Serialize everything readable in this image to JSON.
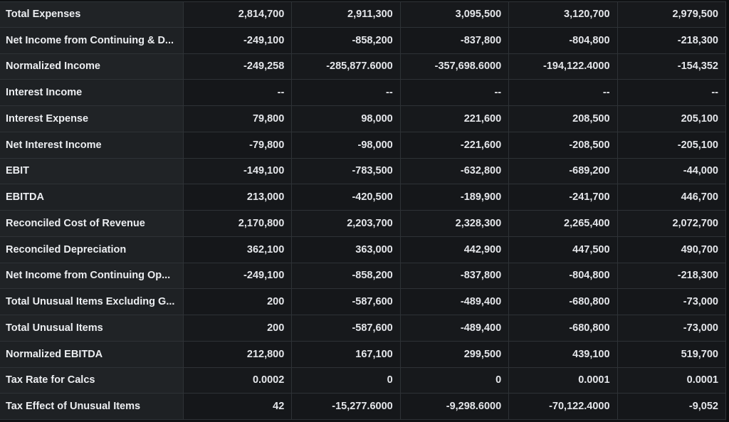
{
  "table": {
    "rows": [
      {
        "label": "Total Expenses",
        "values": [
          "2,814,700",
          "2,911,300",
          "3,095,500",
          "3,120,700",
          "2,979,500"
        ]
      },
      {
        "label": "Net Income from Continuing & D...",
        "values": [
          "-249,100",
          "-858,200",
          "-837,800",
          "-804,800",
          "-218,300"
        ]
      },
      {
        "label": "Normalized Income",
        "values": [
          "-249,258",
          "-285,877.6000",
          "-357,698.6000",
          "-194,122.4000",
          "-154,352"
        ]
      },
      {
        "label": "Interest Income",
        "values": [
          "--",
          "--",
          "--",
          "--",
          "--"
        ]
      },
      {
        "label": "Interest Expense",
        "values": [
          "79,800",
          "98,000",
          "221,600",
          "208,500",
          "205,100"
        ]
      },
      {
        "label": "Net Interest Income",
        "values": [
          "-79,800",
          "-98,000",
          "-221,600",
          "-208,500",
          "-205,100"
        ]
      },
      {
        "label": "EBIT",
        "values": [
          "-149,100",
          "-783,500",
          "-632,800",
          "-689,200",
          "-44,000"
        ]
      },
      {
        "label": "EBITDA",
        "values": [
          "213,000",
          "-420,500",
          "-189,900",
          "-241,700",
          "446,700"
        ]
      },
      {
        "label": "Reconciled Cost of Revenue",
        "values": [
          "2,170,800",
          "2,203,700",
          "2,328,300",
          "2,265,400",
          "2,072,700"
        ]
      },
      {
        "label": "Reconciled Depreciation",
        "values": [
          "362,100",
          "363,000",
          "442,900",
          "447,500",
          "490,700"
        ]
      },
      {
        "label": "Net Income from Continuing Op...",
        "values": [
          "-249,100",
          "-858,200",
          "-837,800",
          "-804,800",
          "-218,300"
        ]
      },
      {
        "label": "Total Unusual Items Excluding G...",
        "values": [
          "200",
          "-587,600",
          "-489,400",
          "-680,800",
          "-73,000"
        ]
      },
      {
        "label": "Total Unusual Items",
        "values": [
          "200",
          "-587,600",
          "-489,400",
          "-680,800",
          "-73,000"
        ]
      },
      {
        "label": "Normalized EBITDA",
        "values": [
          "212,800",
          "167,100",
          "299,500",
          "439,100",
          "519,700"
        ]
      },
      {
        "label": "Tax Rate for Calcs",
        "values": [
          "0.0002",
          "0",
          "0",
          "0.0001",
          "0.0001"
        ]
      },
      {
        "label": "Tax Effect of Unusual Items",
        "values": [
          "42",
          "-15,277.6000",
          "-9,298.6000",
          "-70,122.4000",
          "-9,052"
        ]
      }
    ]
  }
}
